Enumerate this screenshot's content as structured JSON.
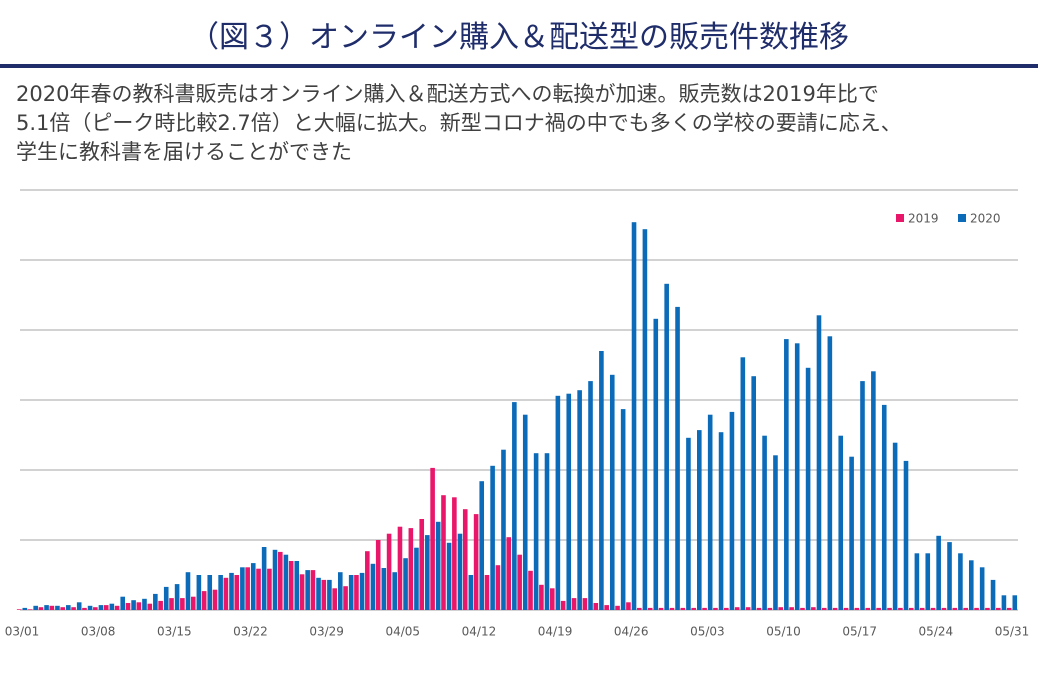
{
  "header": {
    "title": "（図３）オンライン購入＆配送型の販売件数推移"
  },
  "description": [
    "2020年春の教科書販売はオンライン購入＆配送方式への転換が加速。販売数は2019年比で",
    "5.1倍（ピーク時比較2.7倍）と大幅に拡大。新型コロナ禍の中でも多くの学校の要請に応え、",
    "学生に教科書を届けることができた"
  ],
  "chart_data": {
    "type": "bar",
    "grid": true,
    "show_ytick_labels": false,
    "legend": "top-right",
    "ylim": [
      0,
      6
    ],
    "yticks": [
      0,
      1,
      2,
      3,
      4,
      5,
      6
    ],
    "categories": [
      "03/01",
      null,
      null,
      null,
      null,
      null,
      null,
      "03/08",
      null,
      null,
      null,
      null,
      null,
      null,
      "03/15",
      null,
      null,
      null,
      null,
      null,
      null,
      "03/22",
      null,
      null,
      null,
      null,
      null,
      null,
      "03/29",
      null,
      null,
      null,
      null,
      null,
      null,
      "04/05",
      null,
      null,
      null,
      null,
      null,
      null,
      "04/12",
      null,
      null,
      null,
      null,
      null,
      null,
      "04/19",
      null,
      null,
      null,
      null,
      null,
      null,
      "04/26",
      null,
      null,
      null,
      null,
      null,
      null,
      "05/03",
      null,
      null,
      null,
      null,
      null,
      null,
      "05/10",
      null,
      null,
      null,
      null,
      null,
      null,
      "05/17",
      null,
      null,
      null,
      null,
      null,
      null,
      "05/24",
      null,
      null,
      null,
      null,
      null,
      null,
      "05/31"
    ],
    "series": [
      {
        "name": "2019",
        "color": "#e8176a",
        "values": [
          0.01,
          0.01,
          0.04,
          0.06,
          0.04,
          0.04,
          0.03,
          0.04,
          0.07,
          0.06,
          0.1,
          0.11,
          0.09,
          0.13,
          0.17,
          0.17,
          0.19,
          0.27,
          0.29,
          0.46,
          0.5,
          0.61,
          0.59,
          0.59,
          0.83,
          0.7,
          0.51,
          0.57,
          0.43,
          0.31,
          0.34,
          0.5,
          0.84,
          1.0,
          1.09,
          1.19,
          1.17,
          1.3,
          2.03,
          1.64,
          1.61,
          1.44,
          1.37,
          0.5,
          0.64,
          1.04,
          0.79,
          0.56,
          0.36,
          0.31,
          0.13,
          0.17,
          0.17,
          0.1,
          0.07,
          0.06,
          0.11,
          0.03,
          0.03,
          0.03,
          0.03,
          0.03,
          0.03,
          0.03,
          0.03,
          0.03,
          0.04,
          0.04,
          0.03,
          0.03,
          0.04,
          0.04,
          0.03,
          0.04,
          0.03,
          0.03,
          0.03,
          0.03,
          0.03,
          0.03,
          0.03,
          0.03,
          0.03,
          0.03,
          0.03,
          0.03,
          0.03,
          0.03,
          0.03,
          0.03,
          0.03,
          0.03
        ]
      },
      {
        "name": "2020",
        "color": "#0b6bb8",
        "values": [
          0.03,
          0.06,
          0.07,
          0.06,
          0.07,
          0.11,
          0.06,
          0.07,
          0.09,
          0.19,
          0.14,
          0.16,
          0.23,
          0.33,
          0.37,
          0.54,
          0.5,
          0.5,
          0.5,
          0.53,
          0.61,
          0.67,
          0.9,
          0.86,
          0.79,
          0.7,
          0.57,
          0.46,
          0.43,
          0.54,
          0.5,
          0.53,
          0.66,
          0.6,
          0.54,
          0.74,
          0.89,
          1.07,
          1.26,
          0.96,
          1.09,
          0.5,
          1.84,
          2.06,
          2.29,
          2.97,
          2.79,
          2.24,
          2.24,
          3.06,
          3.09,
          3.14,
          3.27,
          3.7,
          3.36,
          2.87,
          5.54,
          5.44,
          4.16,
          4.66,
          4.33,
          2.46,
          2.57,
          2.79,
          2.54,
          2.83,
          3.61,
          3.34,
          2.49,
          2.21,
          3.87,
          3.81,
          3.46,
          4.21,
          3.91,
          2.49,
          2.19,
          3.27,
          3.41,
          2.93,
          2.39,
          2.13,
          0.81,
          0.81,
          1.06,
          0.97,
          0.81,
          0.71,
          0.61,
          0.43,
          0.21,
          0.21
        ]
      }
    ]
  }
}
